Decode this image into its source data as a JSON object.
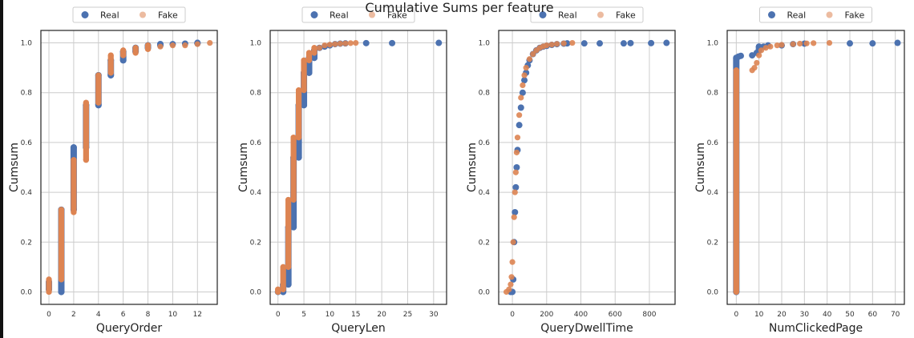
{
  "figure_title": "Cumulative Sums per feature",
  "colors": {
    "real": "#4c72b0",
    "fake": "#dd8452"
  },
  "chart_data": [
    {
      "type": "scatter",
      "xlabel": "QueryOrder",
      "ylabel": "Cumsum",
      "xlim": [
        -0.65,
        13.6
      ],
      "ylim": [
        -0.05,
        1.05
      ],
      "xticks": [
        0,
        2,
        4,
        6,
        8,
        10,
        12
      ],
      "yticks": [
        0.0,
        0.2,
        0.4,
        0.6,
        0.8,
        1.0
      ],
      "legend": [
        "Real",
        "Fake"
      ],
      "series": [
        {
          "name": "Real",
          "points": [
            [
              0,
              0.01
            ],
            [
              0,
              0.04
            ],
            [
              1,
              0.0
            ],
            [
              1,
              0.33
            ],
            [
              2,
              0.33
            ],
            [
              2,
              0.58
            ],
            [
              3,
              0.58
            ],
            [
              3,
              0.75
            ],
            [
              4,
              0.75
            ],
            [
              4,
              0.87
            ],
            [
              5,
              0.87
            ],
            [
              5,
              0.93
            ],
            [
              6,
              0.93
            ],
            [
              6,
              0.965
            ],
            [
              7,
              0.965
            ],
            [
              7,
              0.98
            ],
            [
              8,
              0.98
            ],
            [
              8,
              0.99
            ],
            [
              9,
              0.99
            ],
            [
              9,
              0.995
            ],
            [
              10,
              0.995
            ],
            [
              11,
              0.997
            ],
            [
              12,
              0.998
            ],
            [
              12,
              1.0
            ]
          ]
        },
        {
          "name": "Fake",
          "points": [
            [
              0,
              0.0
            ],
            [
              0,
              0.05
            ],
            [
              1,
              0.05
            ],
            [
              1,
              0.33
            ],
            [
              2,
              0.32
            ],
            [
              2,
              0.53
            ],
            [
              3,
              0.53
            ],
            [
              3,
              0.76
            ],
            [
              4,
              0.76
            ],
            [
              4,
              0.87
            ],
            [
              5,
              0.88
            ],
            [
              5,
              0.95
            ],
            [
              6,
              0.95
            ],
            [
              6,
              0.97
            ],
            [
              7,
              0.96
            ],
            [
              7,
              0.98
            ],
            [
              8,
              0.975
            ],
            [
              8,
              0.99
            ],
            [
              9,
              0.985
            ],
            [
              10,
              0.99
            ],
            [
              11,
              0.99
            ],
            [
              12,
              0.995
            ],
            [
              13,
              1.0
            ]
          ]
        }
      ]
    },
    {
      "type": "scatter",
      "xlabel": "QueryLen",
      "ylabel": "Cumsum",
      "xlim": [
        -1.5,
        32.5
      ],
      "ylim": [
        -0.05,
        1.05
      ],
      "xticks": [
        0,
        5,
        10,
        15,
        20,
        25,
        30
      ],
      "yticks": [
        0.0,
        0.2,
        0.4,
        0.6,
        0.8,
        1.0
      ],
      "legend": [
        "Real",
        "Fake"
      ],
      "series": [
        {
          "name": "Real",
          "points": [
            [
              0,
              0.0
            ],
            [
              1,
              0.0
            ],
            [
              1,
              0.03
            ],
            [
              2,
              0.03
            ],
            [
              2,
              0.26
            ],
            [
              3,
              0.26
            ],
            [
              3,
              0.54
            ],
            [
              4,
              0.54
            ],
            [
              4,
              0.75
            ],
            [
              5,
              0.75
            ],
            [
              5,
              0.88
            ],
            [
              6,
              0.88
            ],
            [
              6,
              0.94
            ],
            [
              7,
              0.94
            ],
            [
              7,
              0.97
            ],
            [
              8,
              0.98
            ],
            [
              9,
              0.985
            ],
            [
              10,
              0.99
            ],
            [
              11,
              0.995
            ],
            [
              12,
              0.997
            ],
            [
              13,
              0.998
            ],
            [
              17,
              0.999
            ],
            [
              22,
              0.999
            ],
            [
              31,
              1.0
            ]
          ]
        },
        {
          "name": "Fake",
          "points": [
            [
              0,
              0.0
            ],
            [
              0,
              0.01
            ],
            [
              1,
              0.01
            ],
            [
              1,
              0.1
            ],
            [
              2,
              0.1
            ],
            [
              2,
              0.37
            ],
            [
              3,
              0.37
            ],
            [
              3,
              0.62
            ],
            [
              4,
              0.62
            ],
            [
              4,
              0.81
            ],
            [
              5,
              0.81
            ],
            [
              5,
              0.93
            ],
            [
              6,
              0.93
            ],
            [
              6,
              0.96
            ],
            [
              7,
              0.96
            ],
            [
              7,
              0.98
            ],
            [
              8,
              0.98
            ],
            [
              9,
              0.99
            ],
            [
              10,
              0.993
            ],
            [
              11,
              0.995
            ],
            [
              12,
              0.997
            ],
            [
              13,
              0.998
            ],
            [
              14,
              0.999
            ],
            [
              15,
              1.0
            ]
          ]
        }
      ]
    },
    {
      "type": "scatter",
      "xlabel": "QueryDwellTime",
      "ylabel": "Cumsum",
      "xlim": [
        -80,
        950
      ],
      "ylim": [
        -0.05,
        1.05
      ],
      "xticks": [
        0,
        200,
        400,
        600,
        800
      ],
      "yticks": [
        0.0,
        0.2,
        0.4,
        0.6,
        0.8,
        1.0
      ],
      "legend": [
        "Real",
        "Fake"
      ],
      "series": [
        {
          "name": "Real",
          "points": [
            [
              -10,
              0.0
            ],
            [
              0,
              0.0
            ],
            [
              5,
              0.05
            ],
            [
              10,
              0.2
            ],
            [
              15,
              0.32
            ],
            [
              20,
              0.42
            ],
            [
              25,
              0.5
            ],
            [
              30,
              0.57
            ],
            [
              40,
              0.67
            ],
            [
              50,
              0.74
            ],
            [
              60,
              0.8
            ],
            [
              70,
              0.85
            ],
            [
              80,
              0.88
            ],
            [
              90,
              0.91
            ],
            [
              100,
              0.93
            ],
            [
              120,
              0.955
            ],
            [
              140,
              0.97
            ],
            [
              160,
              0.98
            ],
            [
              180,
              0.985
            ],
            [
              200,
              0.988
            ],
            [
              230,
              0.992
            ],
            [
              260,
              0.995
            ],
            [
              300,
              0.997
            ],
            [
              320,
              0.998
            ],
            [
              420,
              0.998
            ],
            [
              510,
              0.998
            ],
            [
              650,
              0.998
            ],
            [
              690,
              0.999
            ],
            [
              810,
              0.999
            ],
            [
              900,
              1.0
            ]
          ]
        },
        {
          "name": "Fake",
          "points": [
            [
              -35,
              0.0
            ],
            [
              -20,
              0.01
            ],
            [
              -10,
              0.03
            ],
            [
              -5,
              0.06
            ],
            [
              0,
              0.12
            ],
            [
              5,
              0.2
            ],
            [
              10,
              0.3
            ],
            [
              15,
              0.4
            ],
            [
              20,
              0.48
            ],
            [
              25,
              0.56
            ],
            [
              30,
              0.62
            ],
            [
              40,
              0.71
            ],
            [
              50,
              0.78
            ],
            [
              60,
              0.83
            ],
            [
              70,
              0.87
            ],
            [
              80,
              0.9
            ],
            [
              100,
              0.935
            ],
            [
              120,
              0.955
            ],
            [
              140,
              0.97
            ],
            [
              160,
              0.98
            ],
            [
              180,
              0.986
            ],
            [
              200,
              0.99
            ],
            [
              230,
              0.993
            ],
            [
              260,
              0.996
            ],
            [
              300,
              0.998
            ],
            [
              350,
              1.0
            ]
          ]
        }
      ]
    },
    {
      "type": "scatter",
      "xlabel": "NumClickedPage",
      "ylabel": "Cumsum",
      "xlim": [
        -4,
        74
      ],
      "ylim": [
        -0.05,
        1.05
      ],
      "xticks": [
        0,
        10,
        20,
        30,
        40,
        50,
        60,
        70
      ],
      "yticks": [
        0.0,
        0.2,
        0.4,
        0.6,
        0.8,
        1.0
      ],
      "legend": [
        "Real",
        "Fake"
      ],
      "series": [
        {
          "name": "Real",
          "points": [
            [
              0,
              0.0
            ],
            [
              0,
              0.94
            ],
            [
              1,
              0.945
            ],
            [
              2,
              0.948
            ],
            [
              7,
              0.95
            ],
            [
              9,
              0.96
            ],
            [
              10,
              0.97
            ],
            [
              10,
              0.985
            ],
            [
              12,
              0.985
            ],
            [
              14,
              0.99
            ],
            [
              20,
              0.99
            ],
            [
              25,
              0.995
            ],
            [
              30,
              0.997
            ],
            [
              50,
              0.998
            ],
            [
              60,
              0.998
            ],
            [
              71,
              1.0
            ]
          ]
        },
        {
          "name": "Fake",
          "points": [
            [
              0,
              0.0
            ],
            [
              0,
              0.89
            ],
            [
              7,
              0.89
            ],
            [
              8,
              0.9
            ],
            [
              9,
              0.92
            ],
            [
              10,
              0.95
            ],
            [
              11,
              0.97
            ],
            [
              13,
              0.98
            ],
            [
              15,
              0.985
            ],
            [
              18,
              0.99
            ],
            [
              20,
              0.992
            ],
            [
              25,
              0.995
            ],
            [
              28,
              0.997
            ],
            [
              31,
              0.998
            ],
            [
              34,
              0.999
            ],
            [
              41,
              1.0
            ]
          ]
        }
      ]
    }
  ]
}
